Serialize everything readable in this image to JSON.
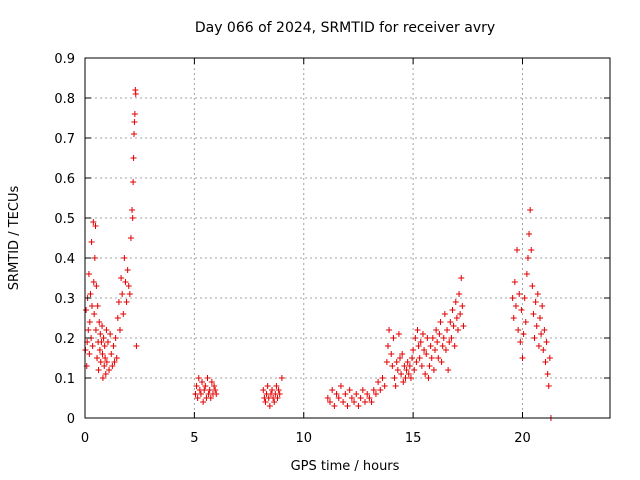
{
  "chart_data": {
    "type": "scatter",
    "title": "Day 066 of 2024, SRMTID for receiver avry",
    "xlabel": "GPS time / hours",
    "ylabel": "SRMTID / TECUs",
    "xlim": [
      0,
      24
    ],
    "ylim": [
      0,
      0.9
    ],
    "x_ticks": [
      0,
      5,
      10,
      15,
      20
    ],
    "x_tick_labels": [
      "0",
      "5",
      "10",
      "15",
      "20"
    ],
    "y_ticks": [
      0,
      0.1,
      0.2,
      0.3,
      0.4,
      0.5,
      0.6,
      0.7,
      0.8,
      0.9
    ],
    "y_tick_labels": [
      "0",
      "0.1",
      "0.2",
      "0.3",
      "0.4",
      "0.5",
      "0.6",
      "0.7",
      "0.8",
      "0.9"
    ],
    "grid": true,
    "marker": "+",
    "colors": {
      "series": "#e00000",
      "grid": "#a0a0a0",
      "axis": "#000000"
    },
    "series": [
      {
        "name": "SRMTID",
        "points": [
          [
            0.02,
            0.17
          ],
          [
            0.05,
            0.27
          ],
          [
            0.08,
            0.13
          ],
          [
            0.1,
            0.19
          ],
          [
            0.12,
            0.3
          ],
          [
            0.15,
            0.22
          ],
          [
            0.18,
            0.36
          ],
          [
            0.2,
            0.16
          ],
          [
            0.22,
            0.24
          ],
          [
            0.25,
            0.31
          ],
          [
            0.28,
            0.2
          ],
          [
            0.3,
            0.44
          ],
          [
            0.32,
            0.28
          ],
          [
            0.35,
            0.18
          ],
          [
            0.38,
            0.49
          ],
          [
            0.4,
            0.34
          ],
          [
            0.42,
            0.26
          ],
          [
            0.45,
            0.4
          ],
          [
            0.48,
            0.48
          ],
          [
            0.5,
            0.22
          ],
          [
            0.52,
            0.33
          ],
          [
            0.55,
            0.15
          ],
          [
            0.58,
            0.28
          ],
          [
            0.6,
            0.19
          ],
          [
            0.62,
            0.12
          ],
          [
            0.65,
            0.24
          ],
          [
            0.68,
            0.17
          ],
          [
            0.7,
            0.21
          ],
          [
            0.72,
            0.14
          ],
          [
            0.75,
            0.19
          ],
          [
            0.78,
            0.23
          ],
          [
            0.8,
            0.16
          ],
          [
            0.82,
            0.1
          ],
          [
            0.85,
            0.2
          ],
          [
            0.88,
            0.13
          ],
          [
            0.9,
            0.18
          ],
          [
            0.92,
            0.15
          ],
          [
            0.95,
            0.11
          ],
          [
            0.98,
            0.22
          ],
          [
            1.0,
            0.14
          ],
          [
            1.05,
            0.19
          ],
          [
            1.1,
            0.12
          ],
          [
            1.15,
            0.21
          ],
          [
            1.2,
            0.16
          ],
          [
            1.25,
            0.13
          ],
          [
            1.3,
            0.18
          ],
          [
            1.35,
            0.14
          ],
          [
            1.4,
            0.2
          ],
          [
            1.45,
            0.15
          ],
          [
            1.5,
            0.25
          ],
          [
            1.55,
            0.29
          ],
          [
            1.6,
            0.22
          ],
          [
            1.65,
            0.35
          ],
          [
            1.7,
            0.31
          ],
          [
            1.75,
            0.26
          ],
          [
            1.8,
            0.4
          ],
          [
            1.85,
            0.34
          ],
          [
            1.9,
            0.29
          ],
          [
            1.95,
            0.37
          ],
          [
            2.0,
            0.33
          ],
          [
            2.05,
            0.31
          ],
          [
            2.1,
            0.45
          ],
          [
            2.15,
            0.52
          ],
          [
            2.18,
            0.5
          ],
          [
            2.2,
            0.59
          ],
          [
            2.22,
            0.65
          ],
          [
            2.24,
            0.71
          ],
          [
            2.26,
            0.74
          ],
          [
            2.28,
            0.76
          ],
          [
            2.3,
            0.82
          ],
          [
            2.32,
            0.81
          ],
          [
            2.35,
            0.18
          ],
          [
            5.05,
            0.06
          ],
          [
            5.1,
            0.08
          ],
          [
            5.15,
            0.05
          ],
          [
            5.2,
            0.1
          ],
          [
            5.25,
            0.07
          ],
          [
            5.3,
            0.06
          ],
          [
            5.35,
            0.09
          ],
          [
            5.4,
            0.04
          ],
          [
            5.45,
            0.07
          ],
          [
            5.5,
            0.08
          ],
          [
            5.55,
            0.05
          ],
          [
            5.6,
            0.1
          ],
          [
            5.65,
            0.06
          ],
          [
            5.7,
            0.07
          ],
          [
            5.75,
            0.05
          ],
          [
            5.8,
            0.09
          ],
          [
            5.85,
            0.06
          ],
          [
            5.9,
            0.08
          ],
          [
            5.95,
            0.07
          ],
          [
            6.0,
            0.06
          ],
          [
            8.15,
            0.07
          ],
          [
            8.2,
            0.05
          ],
          [
            8.25,
            0.04
          ],
          [
            8.3,
            0.06
          ],
          [
            8.35,
            0.08
          ],
          [
            8.4,
            0.05
          ],
          [
            8.45,
            0.03
          ],
          [
            8.5,
            0.06
          ],
          [
            8.55,
            0.07
          ],
          [
            8.6,
            0.05
          ],
          [
            8.65,
            0.04
          ],
          [
            8.7,
            0.06
          ],
          [
            8.75,
            0.08
          ],
          [
            8.8,
            0.05
          ],
          [
            8.85,
            0.07
          ],
          [
            8.9,
            0.06
          ],
          [
            9.0,
            0.1
          ],
          [
            11.1,
            0.05
          ],
          [
            11.2,
            0.04
          ],
          [
            11.3,
            0.07
          ],
          [
            11.4,
            0.03
          ],
          [
            11.5,
            0.06
          ],
          [
            11.6,
            0.05
          ],
          [
            11.7,
            0.08
          ],
          [
            11.8,
            0.04
          ],
          [
            11.9,
            0.06
          ],
          [
            12.0,
            0.03
          ],
          [
            12.1,
            0.07
          ],
          [
            12.2,
            0.05
          ],
          [
            12.3,
            0.04
          ],
          [
            12.4,
            0.06
          ],
          [
            12.5,
            0.03
          ],
          [
            12.6,
            0.05
          ],
          [
            12.7,
            0.07
          ],
          [
            12.8,
            0.04
          ],
          [
            12.9,
            0.06
          ],
          [
            13.0,
            0.05
          ],
          [
            13.1,
            0.04
          ],
          [
            13.2,
            0.07
          ],
          [
            13.3,
            0.06
          ],
          [
            13.4,
            0.09
          ],
          [
            13.5,
            0.07
          ],
          [
            13.6,
            0.1
          ],
          [
            13.7,
            0.08
          ],
          [
            13.8,
            0.14
          ],
          [
            13.85,
            0.18
          ],
          [
            13.9,
            0.22
          ],
          [
            14.0,
            0.16
          ],
          [
            14.05,
            0.13
          ],
          [
            14.1,
            0.2
          ],
          [
            14.15,
            0.1
          ],
          [
            14.2,
            0.08
          ],
          [
            14.25,
            0.14
          ],
          [
            14.3,
            0.12
          ],
          [
            14.35,
            0.21
          ],
          [
            14.4,
            0.15
          ],
          [
            14.45,
            0.11
          ],
          [
            14.5,
            0.16
          ],
          [
            14.55,
            0.09
          ],
          [
            14.6,
            0.13
          ],
          [
            14.65,
            0.1
          ],
          [
            14.7,
            0.12
          ],
          [
            14.75,
            0.14
          ],
          [
            14.8,
            0.11
          ],
          [
            14.85,
            0.13
          ],
          [
            14.9,
            0.1
          ],
          [
            14.95,
            0.15
          ],
          [
            15.0,
            0.17
          ],
          [
            15.05,
            0.12
          ],
          [
            15.1,
            0.2
          ],
          [
            15.15,
            0.14
          ],
          [
            15.2,
            0.22
          ],
          [
            15.25,
            0.18
          ],
          [
            15.3,
            0.15
          ],
          [
            15.35,
            0.19
          ],
          [
            15.4,
            0.13
          ],
          [
            15.45,
            0.21
          ],
          [
            15.5,
            0.17
          ],
          [
            15.55,
            0.11
          ],
          [
            15.6,
            0.16
          ],
          [
            15.65,
            0.2
          ],
          [
            15.7,
            0.1
          ],
          [
            15.75,
            0.13
          ],
          [
            15.8,
            0.18
          ],
          [
            15.85,
            0.15
          ],
          [
            15.9,
            0.2
          ],
          [
            15.95,
            0.12
          ],
          [
            16.0,
            0.17
          ],
          [
            16.05,
            0.22
          ],
          [
            16.1,
            0.19
          ],
          [
            16.15,
            0.15
          ],
          [
            16.2,
            0.21
          ],
          [
            16.25,
            0.24
          ],
          [
            16.3,
            0.14
          ],
          [
            16.35,
            0.18
          ],
          [
            16.4,
            0.2
          ],
          [
            16.45,
            0.26
          ],
          [
            16.5,
            0.17
          ],
          [
            16.55,
            0.22
          ],
          [
            16.6,
            0.12
          ],
          [
            16.65,
            0.19
          ],
          [
            16.7,
            0.24
          ],
          [
            16.75,
            0.2
          ],
          [
            16.8,
            0.27
          ],
          [
            16.85,
            0.23
          ],
          [
            16.9,
            0.18
          ],
          [
            16.95,
            0.29
          ],
          [
            17.0,
            0.25
          ],
          [
            17.05,
            0.22
          ],
          [
            17.1,
            0.31
          ],
          [
            17.15,
            0.26
          ],
          [
            17.2,
            0.35
          ],
          [
            17.25,
            0.28
          ],
          [
            17.3,
            0.23
          ],
          [
            19.55,
            0.3
          ],
          [
            19.6,
            0.25
          ],
          [
            19.65,
            0.34
          ],
          [
            19.7,
            0.28
          ],
          [
            19.75,
            0.42
          ],
          [
            19.8,
            0.22
          ],
          [
            19.85,
            0.31
          ],
          [
            19.9,
            0.19
          ],
          [
            19.95,
            0.27
          ],
          [
            20.0,
            0.15
          ],
          [
            20.05,
            0.21
          ],
          [
            20.1,
            0.3
          ],
          [
            20.15,
            0.24
          ],
          [
            20.2,
            0.36
          ],
          [
            20.25,
            0.4
          ],
          [
            20.3,
            0.46
          ],
          [
            20.35,
            0.52
          ],
          [
            20.4,
            0.42
          ],
          [
            20.45,
            0.33
          ],
          [
            20.5,
            0.26
          ],
          [
            20.55,
            0.2
          ],
          [
            20.6,
            0.29
          ],
          [
            20.65,
            0.23
          ],
          [
            20.7,
            0.31
          ],
          [
            20.75,
            0.18
          ],
          [
            20.8,
            0.25
          ],
          [
            20.85,
            0.21
          ],
          [
            20.9,
            0.28
          ],
          [
            20.95,
            0.17
          ],
          [
            21.0,
            0.22
          ],
          [
            21.05,
            0.14
          ],
          [
            21.1,
            0.19
          ],
          [
            21.15,
            0.11
          ],
          [
            21.2,
            0.08
          ],
          [
            21.25,
            0.15
          ],
          [
            21.3,
            0.0
          ]
        ]
      }
    ]
  }
}
